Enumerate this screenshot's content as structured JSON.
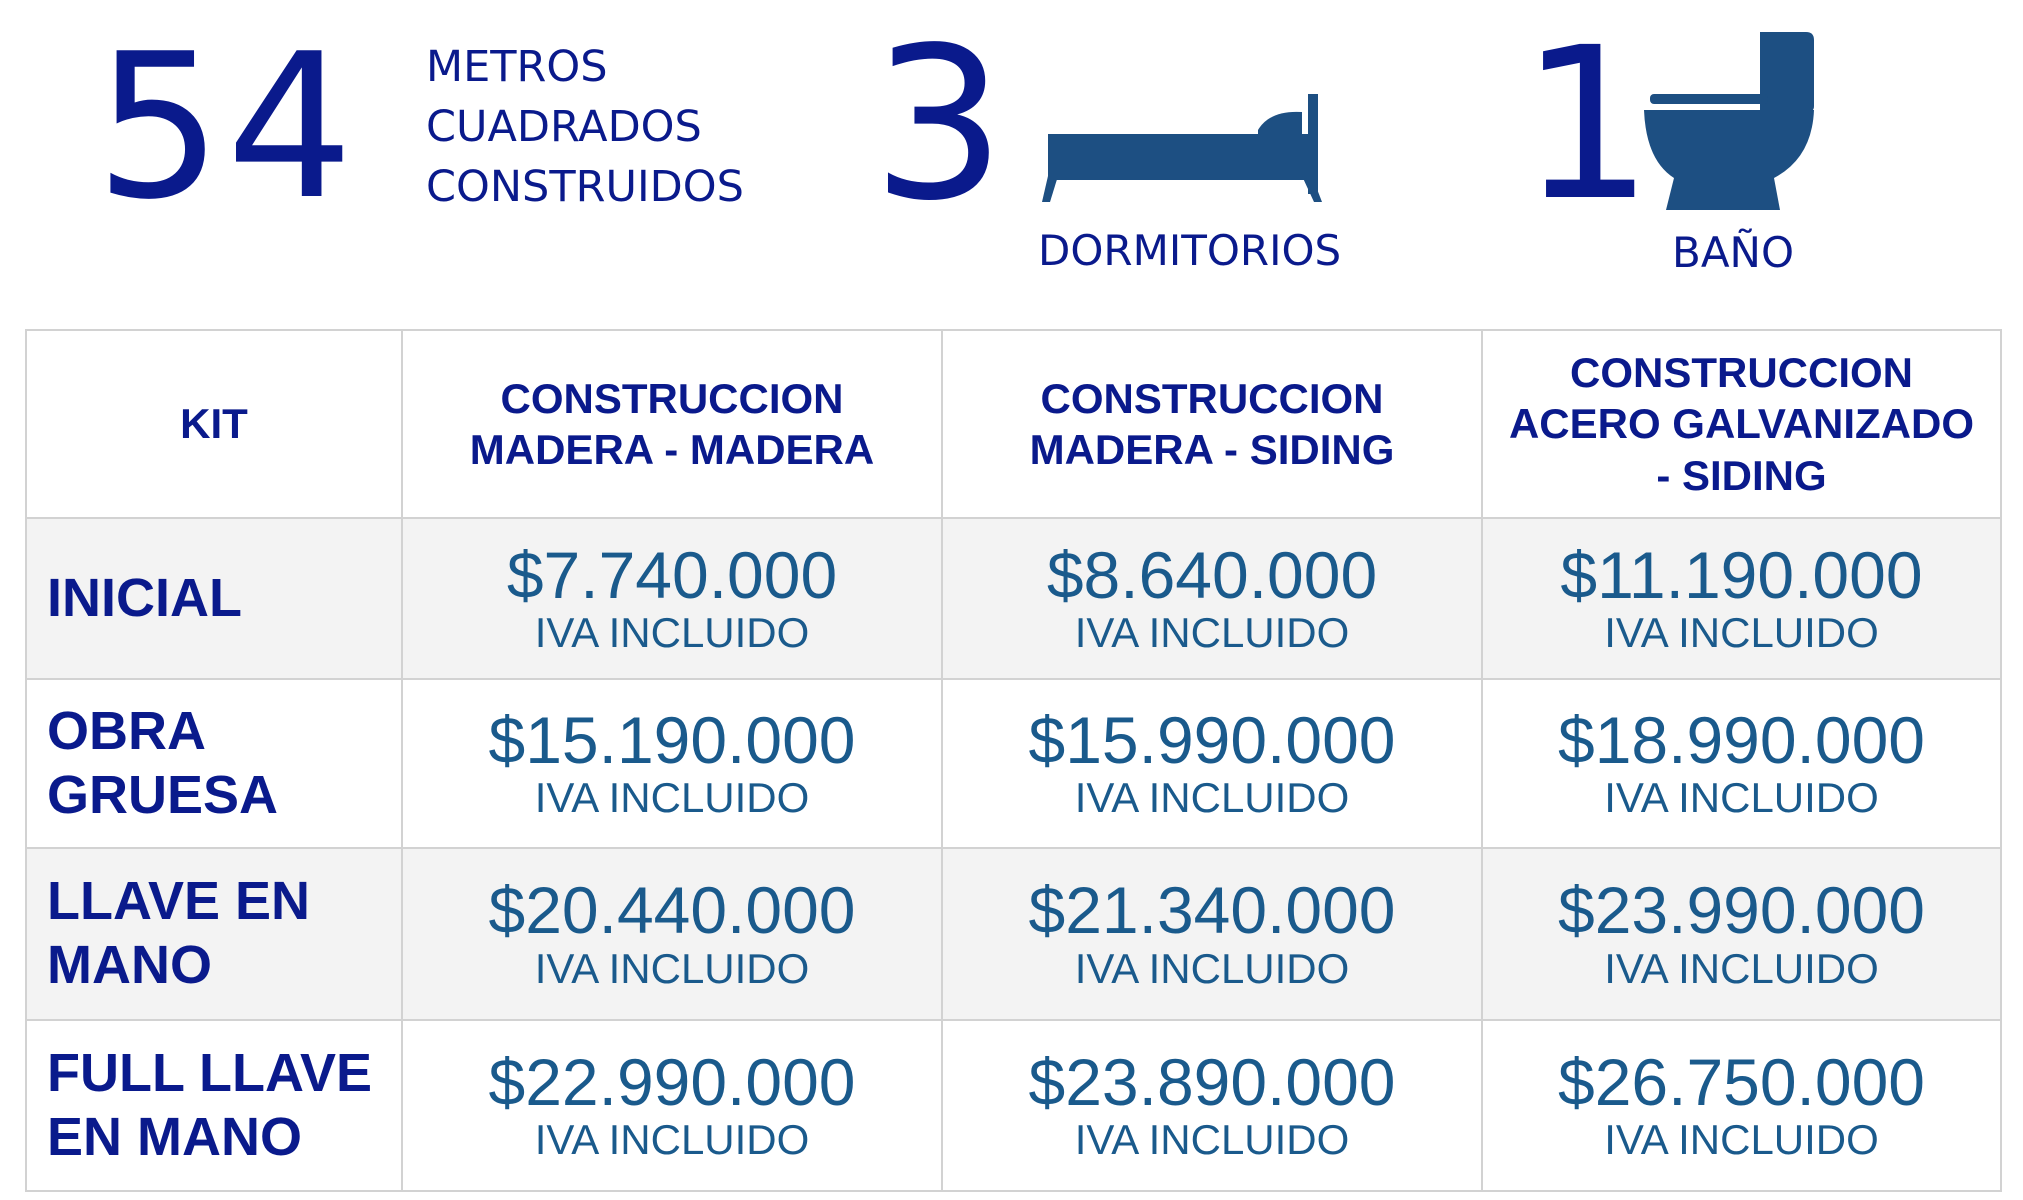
{
  "summary": {
    "area_value": "54",
    "area_label_lines": [
      "METROS",
      "CUADRADOS",
      "CONSTRUIDOS"
    ],
    "bedrooms_value": "3",
    "bedrooms_label": "DORMITORIOS",
    "bathrooms_value": "1",
    "bathrooms_label": "BAÑO"
  },
  "icons": {
    "bedrooms": "bed-icon",
    "bathrooms": "toilet-icon"
  },
  "colors": {
    "title_blue": "#0a1a8c",
    "price_blue": "#1a5a8c",
    "icon_blue": "#1d4f82",
    "row_gray": "#f3f3f3",
    "border": "#d2d2d2"
  },
  "table": {
    "headers": {
      "kit": "KIT",
      "col1": [
        "CONSTRUCCION",
        "MADERA - MADERA"
      ],
      "col2": [
        "CONSTRUCCION",
        "MADERA - SIDING"
      ],
      "col3": [
        "CONSTRUCCION",
        "ACERO GALVANIZADO",
        "- SIDING"
      ]
    },
    "rows": [
      {
        "label": [
          "INICIAL"
        ],
        "prices": [
          "$7.740.000",
          "$8.640.000",
          "$11.190.000"
        ],
        "note": "IVA INCLUIDO"
      },
      {
        "label": [
          "OBRA",
          "GRUESA"
        ],
        "prices": [
          "$15.190.000",
          "$15.990.000",
          "$18.990.000"
        ],
        "note": "IVA INCLUIDO"
      },
      {
        "label": [
          "LLAVE EN",
          "MANO"
        ],
        "prices": [
          "$20.440.000",
          "$21.340.000",
          "$23.990.000"
        ],
        "note": "IVA INCLUIDO"
      },
      {
        "label": [
          "FULL LLAVE",
          "EN MANO"
        ],
        "prices": [
          "$22.990.000",
          "$23.890.000",
          "$26.750.000"
        ],
        "note": "IVA INCLUIDO"
      }
    ]
  }
}
